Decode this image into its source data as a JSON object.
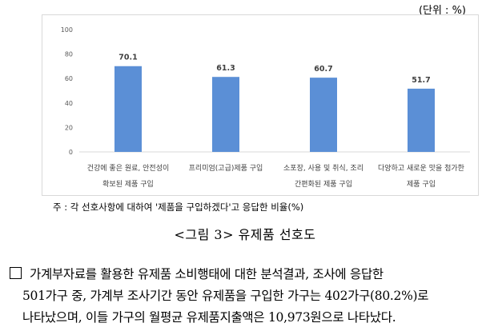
{
  "unit_label": "(단위 : %)",
  "chart_data": {
    "type": "bar",
    "categories": [
      [
        "건강에 좋은 원료, 안전성이",
        "확보된 제품 구입"
      ],
      [
        "프리미엄(고급)제품 구입"
      ],
      [
        "소포장, 사용 및 취식, 조리",
        "간편화된 제품 구입"
      ],
      [
        "다양하고 새로운 맛을 첨가한",
        "제품 구입"
      ]
    ],
    "values": [
      70.1,
      61.3,
      60.7,
      51.7
    ],
    "value_labels": [
      "70.1",
      "61.3",
      "60.7",
      "51.7"
    ],
    "ylim": [
      0,
      100
    ],
    "yticks": [
      0,
      20,
      40,
      60,
      80,
      100
    ],
    "grid": false,
    "bar_color": "#5b8fd6",
    "title": "",
    "xlabel": "",
    "ylabel": ""
  },
  "note": "주 : 각 선호사항에 대하여 '제품을 구입하겠다'고 응답한 비율(%)",
  "caption": "<그림 3> 유제품 선호도",
  "paragraph": {
    "line1": "가계부자료를 활용한 유제품 소비행태에 대한 분석결과, 조사에 응답한",
    "line2": "501가구 중, 가계부 조사기간 동안 유제품을 구입한 가구는 402가구(80.2%)로",
    "line3": "나타났으며, 이들 가구의 월평균 유제품지출액은 10,973원으로 나타났다."
  }
}
